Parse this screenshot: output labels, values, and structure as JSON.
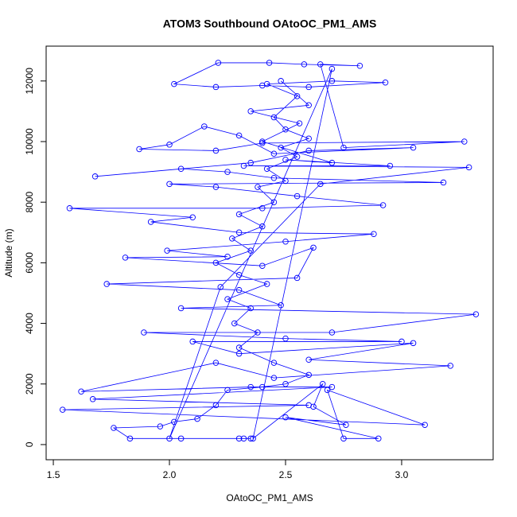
{
  "chart_data": {
    "type": "line",
    "markers": true,
    "title": "ATOM3 Southbound OAtoOC_PM1_AMS",
    "x_label": "OAtoOC_PM1_AMS",
    "y_label": "Altitude (m)",
    "xlim": [
      1.469,
      3.394
    ],
    "ylim": [
      -500,
      13150
    ],
    "xticks": [
      1.5,
      {
        "value": 2.0,
        "label": "2.0"
      },
      2.5,
      {
        "value": 3.0,
        "label": "3.0"
      }
    ],
    "yticks": [
      0,
      2000,
      4000,
      6000,
      8000,
      10000,
      12000
    ],
    "grid": false,
    "series": [
      {
        "color": "#0000ff",
        "x": [
          2.3,
          2.32,
          2.35,
          2.05,
          1.83,
          1.76,
          1.96,
          2.02,
          2.12,
          2.2,
          2.25,
          2.4,
          2.5,
          2.6,
          2.45,
          2.3,
          2.38,
          2.28,
          2.35,
          2.25,
          2.42,
          2.3,
          2.2,
          2.35,
          2.27,
          2.4,
          2.3,
          2.45,
          2.38,
          2.5,
          2.42,
          2.55,
          2.48,
          2.6,
          2.5,
          2.45,
          2.55,
          2.42,
          2.7,
          2.93,
          2.6,
          2.4,
          2.2,
          2.02,
          2.21,
          2.43,
          2.58,
          2.82,
          2.65,
          2.75,
          3.27,
          2.4,
          2.2,
          1.87,
          2.0,
          2.15,
          2.3,
          2.45,
          3.05,
          2.6,
          2.35,
          1.68,
          2.05,
          2.25,
          2.45,
          3.18,
          2.0,
          2.2,
          2.55,
          2.92,
          2.4,
          1.57,
          2.1,
          1.92,
          2.3,
          2.88,
          2.5,
          1.99,
          2.25,
          1.81,
          2.4,
          2.62,
          2.55,
          1.73,
          2.3,
          2.48,
          2.05,
          3.32,
          2.7,
          1.89,
          2.5,
          3.0,
          2.1,
          2.3,
          3.05,
          2.6,
          3.21,
          2.45,
          2.2,
          1.62,
          2.35,
          2.7,
          1.67,
          2.6,
          1.54,
          3.1,
          2.68,
          2.75,
          2.9,
          2.5,
          2.76,
          2.62,
          2.66,
          2.36,
          2.7,
          2.0,
          2.22,
          2.65,
          3.29,
          2.32,
          2.95,
          2.5,
          2.7,
          2.4,
          2.56,
          2.35,
          2.6,
          2.48
        ],
        "values": [
          200,
          200,
          200,
          200,
          200,
          550,
          600,
          750,
          850,
          1300,
          1800,
          1900,
          2000,
          2300,
          2700,
          3200,
          3700,
          4000,
          4500,
          4800,
          5300,
          5600,
          6000,
          6400,
          6800,
          7200,
          7600,
          8000,
          8500,
          8700,
          9100,
          9500,
          9800,
          10100,
          10400,
          10800,
          11500,
          11900,
          12000,
          11950,
          11800,
          11850,
          11800,
          11900,
          12600,
          12600,
          12550,
          12500,
          12550,
          9800,
          10000,
          9950,
          9700,
          9750,
          9900,
          10500,
          10200,
          9600,
          9800,
          9700,
          9300,
          8850,
          9100,
          9000,
          8800,
          8650,
          8600,
          8500,
          8200,
          7900,
          7800,
          7800,
          7500,
          7350,
          7000,
          6950,
          6700,
          6400,
          6200,
          6170,
          5900,
          6500,
          5500,
          5300,
          5100,
          4600,
          4500,
          4300,
          3700,
          3700,
          3500,
          3400,
          3400,
          3000,
          3350,
          2800,
          2600,
          2200,
          2700,
          1750,
          1900,
          1900,
          1500,
          1300,
          1150,
          650,
          1800,
          200,
          200,
          900,
          650,
          1250,
          2000,
          200,
          12400,
          200,
          5200,
          8600,
          9150,
          9200,
          9200,
          9400,
          9300,
          10000,
          10600,
          11000,
          11200,
          12000
        ]
      }
    ]
  }
}
